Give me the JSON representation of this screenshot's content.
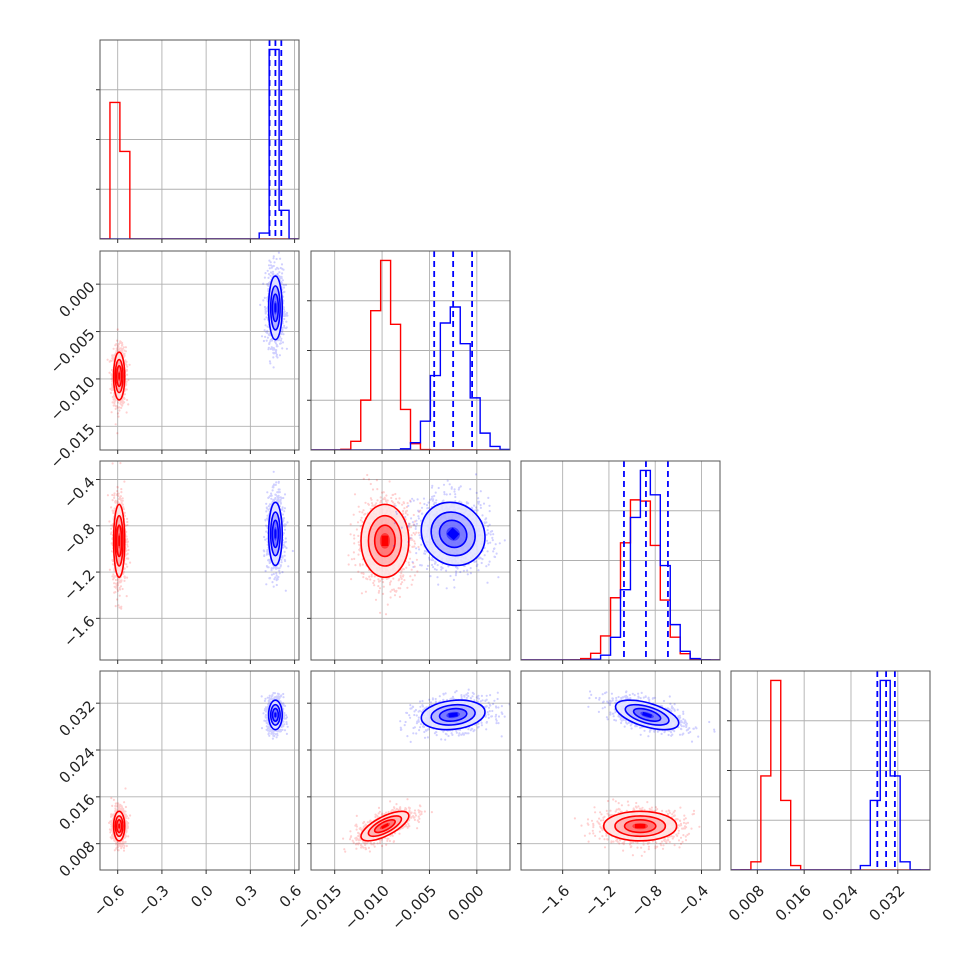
{
  "chart_data": {
    "type": "corner",
    "title": "",
    "parameters": [
      "",
      "",
      "",
      ""
    ],
    "colors": {
      "red": "#ff0000",
      "blue": "#0000ff"
    },
    "grid": true,
    "axes_ranges": {
      "p0": [
        -0.72,
        0.63
      ],
      "p1": [
        -0.0175,
        0.0035
      ],
      "p2": [
        -1.96,
        -0.24
      ],
      "p3": [
        0.0035,
        0.0375
      ]
    },
    "tick_labels": {
      "p0": [
        "−0.6",
        "−0.3",
        "0.0",
        "0.3",
        "0.6"
      ],
      "p1": [
        "−0.015",
        "−0.010",
        "−0.005",
        "0.000"
      ],
      "p2": [
        "−1.6",
        "−1.2",
        "−0.8",
        "−0.4"
      ],
      "p3": [
        "0.008",
        "0.016",
        "0.024",
        "0.032"
      ]
    },
    "tick_values": {
      "p0": [
        -0.6,
        -0.3,
        0.0,
        0.3,
        0.6
      ],
      "p1": [
        -0.015,
        -0.01,
        -0.005,
        0.0
      ],
      "p2": [
        -1.6,
        -1.2,
        -0.8,
        -0.4
      ],
      "p3": [
        0.008,
        0.016,
        0.024,
        0.032
      ]
    },
    "series": [
      {
        "color": "red",
        "mean": [
          -0.59,
          -0.0097,
          -0.93,
          0.011
        ],
        "sd": [
          0.018,
          0.0012,
          0.15,
          0.0012
        ],
        "corr": {
          "p1_p2": 0.0,
          "p1_p3": 0.7,
          "p2_p3": 0.0,
          "p0_p1": 0.0,
          "p0_p2": 0.0,
          "p0_p3": 0.0
        },
        "quantile_lines": null
      },
      {
        "color": "blue",
        "mean": [
          0.47,
          -0.0025,
          -0.87,
          0.03
        ],
        "sd": [
          0.022,
          0.0016,
          0.13,
          0.0012
        ],
        "corr": {
          "p1_p2": -0.1,
          "p1_p3": 0.2,
          "p2_p3": -0.55,
          "p0_p1": 0.0,
          "p0_p2": 0.0,
          "p0_p3": 0.0
        },
        "quantile_lines": [
          [
            0.43,
            0.47,
            0.51
          ],
          [
            -0.0045,
            -0.0025,
            -0.0005
          ],
          [
            -1.07,
            -0.88,
            -0.69
          ],
          [
            0.0285,
            0.03,
            0.0315
          ]
        ]
      }
    ]
  }
}
